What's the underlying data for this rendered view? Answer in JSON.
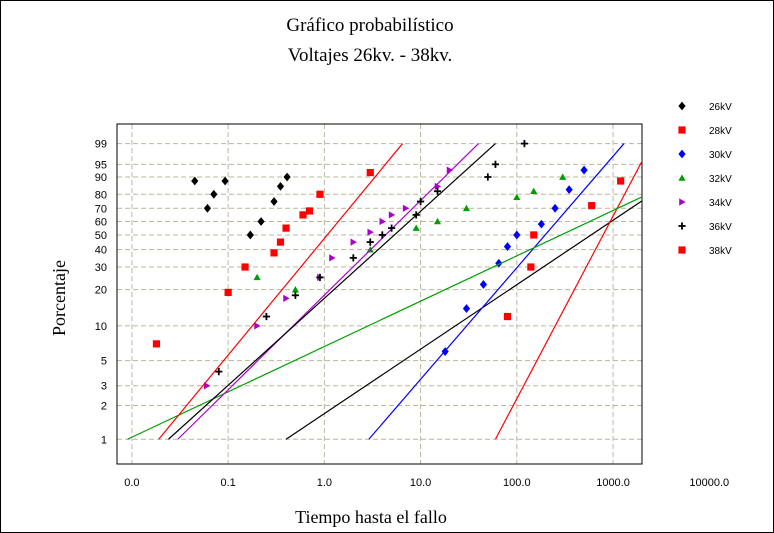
{
  "chart_data": {
    "type": "scatter",
    "title": "Gráfico probabilístico",
    "subtitle": "Voltajes 26kv. - 38kv.",
    "xlabel": "Tiempo hasta el fallo",
    "ylabel": "Porcentaje",
    "x_scale": "log",
    "y_scale": "weibull-probability",
    "xlim": [
      0.7,
      200000
    ],
    "ylim": [
      0.6,
      99.9
    ],
    "x_ticks": [
      1,
      10,
      100,
      1000,
      10000,
      100000
    ],
    "x_tick_labels": [
      "0.0",
      "0.1",
      "1.0",
      "10.0",
      "100.0",
      "1000.0",
      "10000.0"
    ],
    "x_tick_values": [
      1,
      10,
      100,
      1000,
      10000,
      100000,
      1000000
    ],
    "y_ticks": [
      1,
      2,
      3,
      5,
      10,
      20,
      30,
      40,
      50,
      60,
      70,
      80,
      90,
      95,
      99
    ],
    "y_tick_labels": [
      "1",
      "2",
      "3",
      "5",
      "10",
      "20",
      "30",
      "40",
      "50",
      "60",
      "70",
      "80",
      "90",
      "95",
      "99"
    ],
    "grid": true,
    "legend_position": "right",
    "series": [
      {
        "name": "26kV",
        "color": "#000000",
        "marker": "diamond",
        "points": [
          [
            4.5,
            88
          ],
          [
            6.1,
            70
          ],
          [
            7.1,
            80
          ],
          [
            9.3,
            88
          ],
          [
            17,
            50
          ],
          [
            22,
            60
          ],
          [
            30,
            75
          ],
          [
            35,
            85
          ],
          [
            41,
            90
          ]
        ],
        "fit": [
          [
            40,
            1
          ],
          [
            1550000,
            99
          ]
        ]
      },
      {
        "name": "28kV",
        "color": "#ff0000",
        "marker": "square",
        "points": [
          [
            120000,
            88
          ],
          [
            60000,
            72
          ],
          [
            15000,
            50
          ],
          [
            14000,
            30
          ],
          [
            8000,
            12
          ]
        ],
        "fit": [
          [
            6000,
            1
          ],
          [
            250000,
            99
          ]
        ]
      },
      {
        "name": "30kV",
        "color": "#0000ff",
        "marker": "diamond",
        "points": [
          [
            50000,
            93
          ],
          [
            35000,
            83
          ],
          [
            25000,
            70
          ],
          [
            18000,
            58
          ],
          [
            10000,
            50
          ],
          [
            8000,
            42
          ],
          [
            6500,
            32
          ],
          [
            4500,
            22
          ],
          [
            3000,
            14
          ],
          [
            1800,
            6
          ]
        ],
        "fit": [
          [
            290,
            1
          ],
          [
            130000,
            99
          ]
        ]
      },
      {
        "name": "32kV",
        "color": "#00a000",
        "marker": "triangle",
        "points": [
          [
            20,
            25
          ],
          [
            50,
            20
          ],
          [
            300,
            40
          ],
          [
            900,
            55
          ],
          [
            1500,
            60
          ],
          [
            3000,
            70
          ],
          [
            10000,
            78
          ],
          [
            15000,
            82
          ],
          [
            30000,
            90
          ]
        ],
        "fit": [
          [
            0.9,
            1
          ],
          [
            3000000,
            99
          ]
        ]
      },
      {
        "name": "34kV",
        "color": "#aa00cc",
        "marker": "triangle-right",
        "points": [
          [
            6,
            3
          ],
          [
            20,
            10
          ],
          [
            40,
            17
          ],
          [
            90,
            25
          ],
          [
            120,
            35
          ],
          [
            200,
            45
          ],
          [
            300,
            52
          ],
          [
            400,
            60
          ],
          [
            500,
            65
          ],
          [
            700,
            70
          ],
          [
            1500,
            85
          ],
          [
            2000,
            93
          ]
        ],
        "fit": [
          [
            3,
            1
          ],
          [
            4000,
            99
          ]
        ]
      },
      {
        "name": "36kV",
        "color": "#000000",
        "marker": "plus",
        "points": [
          [
            8,
            4
          ],
          [
            25,
            12
          ],
          [
            50,
            18
          ],
          [
            90,
            25
          ],
          [
            200,
            35
          ],
          [
            300,
            45
          ],
          [
            400,
            50
          ],
          [
            500,
            55
          ],
          [
            900,
            65
          ],
          [
            1000,
            75
          ],
          [
            1500,
            82
          ],
          [
            5000,
            90
          ],
          [
            6000,
            95
          ],
          [
            12000,
            99
          ]
        ],
        "fit": [
          [
            2.4,
            1
          ],
          [
            6000,
            99
          ]
        ]
      },
      {
        "name": "38kV",
        "color": "#ff0000",
        "marker": "square",
        "points": [
          [
            1.8,
            7
          ],
          [
            10,
            19
          ],
          [
            15,
            30
          ],
          [
            30,
            38
          ],
          [
            35,
            45
          ],
          [
            40,
            55
          ],
          [
            60,
            65
          ],
          [
            70,
            68
          ],
          [
            90,
            80
          ],
          [
            300,
            92
          ]
        ],
        "fit": [
          [
            1.9,
            1
          ],
          [
            650,
            99
          ]
        ]
      }
    ]
  }
}
